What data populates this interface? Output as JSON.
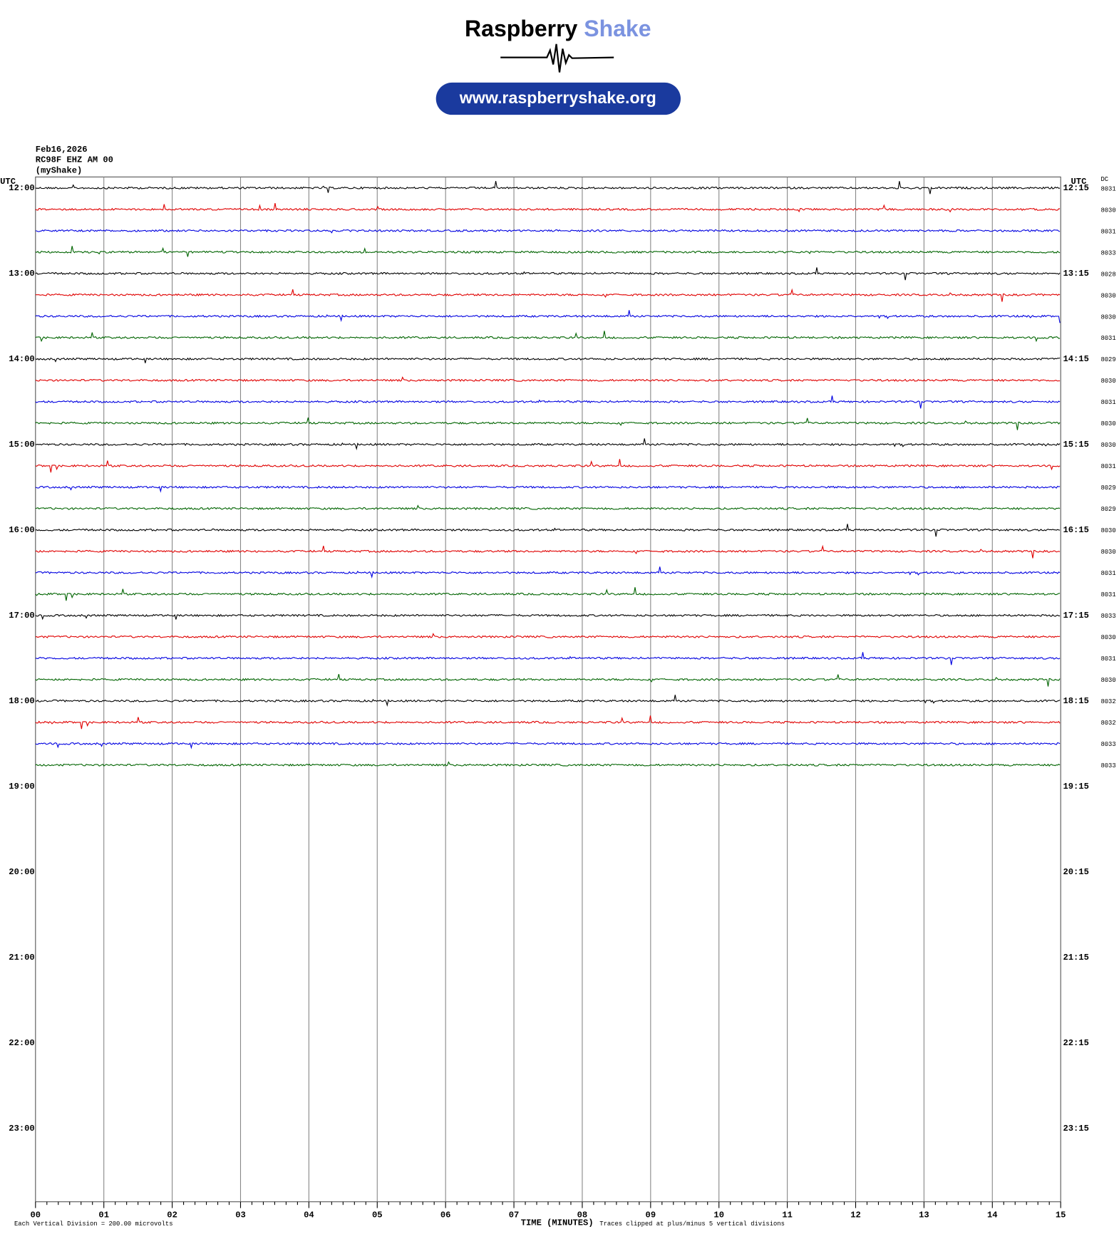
{
  "header": {
    "brand_1": "Raspberry",
    "brand_2": "Shake",
    "url": "www.raspberryshake.org"
  },
  "info": {
    "date": "Feb16,2026",
    "station": "RC98F EHZ AM 00",
    "network": "(myShake)"
  },
  "plot": {
    "left_axis_title": "UTC",
    "right_axis_title": "UTC",
    "dc_title": "DC",
    "left_labels": [
      "12:00",
      "13:00",
      "14:00",
      "15:00",
      "16:00",
      "17:00",
      "18:00",
      "19:00",
      "20:00",
      "21:00",
      "22:00",
      "23:00"
    ],
    "right_labels": [
      "12:15",
      "13:15",
      "14:15",
      "15:15",
      "16:15",
      "17:15",
      "18:15",
      "19:15",
      "20:15",
      "21:15",
      "22:15",
      "23:15"
    ],
    "dc_values": [
      8031,
      8030,
      8031,
      8033,
      8028,
      8030,
      8030,
      8031,
      8029,
      8030,
      8031,
      8030,
      8030,
      8031,
      8029,
      8029,
      8030,
      8030,
      8031,
      8031,
      8033,
      8030,
      8031,
      8030,
      8032,
      8032,
      8033,
      8033
    ],
    "trace_colors": [
      "#000000",
      "#e00000",
      "#0000e0",
      "#006400"
    ],
    "x_ticks": [
      "00",
      "01",
      "02",
      "03",
      "04",
      "05",
      "06",
      "07",
      "08",
      "09",
      "10",
      "11",
      "12",
      "13",
      "14",
      "15"
    ],
    "x_axis_title": "TIME (MINUTES)",
    "scale_note": "Each Vertical Division =  200.00 microvolts",
    "clip_note": "Traces clipped at plus/minus 5 vertical divisions"
  }
}
